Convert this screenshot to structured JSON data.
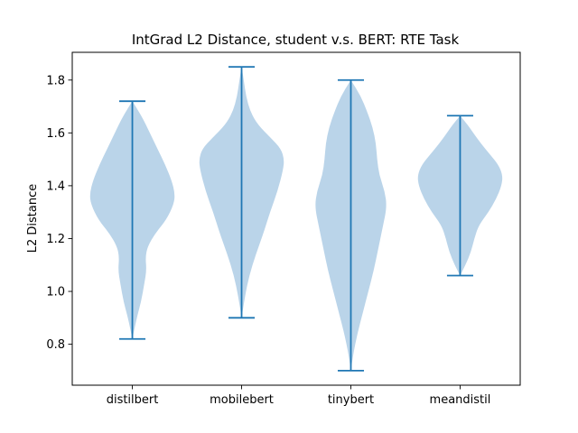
{
  "chart_data": {
    "type": "violin",
    "title": "IntGrad L2 Distance, student v.s. BERT: RTE Task",
    "xlabel": "",
    "ylabel": "L2 Distance",
    "ylim": [
      0.645,
      1.905
    ],
    "yticks": [
      0.8,
      1.0,
      1.2,
      1.4,
      1.6,
      1.8
    ],
    "categories": [
      "distilbert",
      "mobilebert",
      "tinybert",
      "meandistil"
    ],
    "color": "#1f77b4",
    "fill_color": "#a6c8e3",
    "grid": false,
    "series": [
      {
        "category": "distilbert",
        "min": 0.82,
        "max": 1.72,
        "density": [
          [
            0.82,
            0.0
          ],
          [
            0.9,
            0.04
          ],
          [
            0.96,
            0.08
          ],
          [
            1.03,
            0.11
          ],
          [
            1.08,
            0.13
          ],
          [
            1.13,
            0.12
          ],
          [
            1.17,
            0.14
          ],
          [
            1.22,
            0.21
          ],
          [
            1.27,
            0.31
          ],
          [
            1.33,
            0.38
          ],
          [
            1.37,
            0.39
          ],
          [
            1.42,
            0.36
          ],
          [
            1.48,
            0.3
          ],
          [
            1.54,
            0.23
          ],
          [
            1.6,
            0.16
          ],
          [
            1.66,
            0.09
          ],
          [
            1.72,
            0.0
          ]
        ]
      },
      {
        "category": "mobilebert",
        "min": 0.9,
        "max": 1.85,
        "density": [
          [
            0.9,
            0.0
          ],
          [
            0.98,
            0.03
          ],
          [
            1.06,
            0.07
          ],
          [
            1.14,
            0.13
          ],
          [
            1.22,
            0.2
          ],
          [
            1.3,
            0.26
          ],
          [
            1.38,
            0.33
          ],
          [
            1.46,
            0.38
          ],
          [
            1.5,
            0.39
          ],
          [
            1.54,
            0.36
          ],
          [
            1.58,
            0.27
          ],
          [
            1.63,
            0.15
          ],
          [
            1.68,
            0.08
          ],
          [
            1.74,
            0.04
          ],
          [
            1.8,
            0.02
          ],
          [
            1.85,
            0.0
          ]
        ]
      },
      {
        "category": "tinybert",
        "min": 0.7,
        "max": 1.8,
        "density": [
          [
            0.7,
            0.0
          ],
          [
            0.76,
            0.02
          ],
          [
            0.84,
            0.06
          ],
          [
            0.92,
            0.11
          ],
          [
            1.0,
            0.16
          ],
          [
            1.08,
            0.21
          ],
          [
            1.16,
            0.25
          ],
          [
            1.24,
            0.29
          ],
          [
            1.32,
            0.33
          ],
          [
            1.38,
            0.31
          ],
          [
            1.44,
            0.26
          ],
          [
            1.5,
            0.24
          ],
          [
            1.56,
            0.23
          ],
          [
            1.62,
            0.2
          ],
          [
            1.68,
            0.15
          ],
          [
            1.74,
            0.09
          ],
          [
            1.8,
            0.0
          ]
        ]
      },
      {
        "category": "meandistil",
        "min": 1.06,
        "max": 1.665,
        "density": [
          [
            1.06,
            0.0
          ],
          [
            1.1,
            0.05
          ],
          [
            1.15,
            0.1
          ],
          [
            1.2,
            0.13
          ],
          [
            1.25,
            0.17
          ],
          [
            1.3,
            0.26
          ],
          [
            1.35,
            0.33
          ],
          [
            1.4,
            0.38
          ],
          [
            1.44,
            0.39
          ],
          [
            1.48,
            0.35
          ],
          [
            1.52,
            0.27
          ],
          [
            1.56,
            0.19
          ],
          [
            1.6,
            0.12
          ],
          [
            1.63,
            0.07
          ],
          [
            1.665,
            0.0
          ]
        ]
      }
    ]
  }
}
